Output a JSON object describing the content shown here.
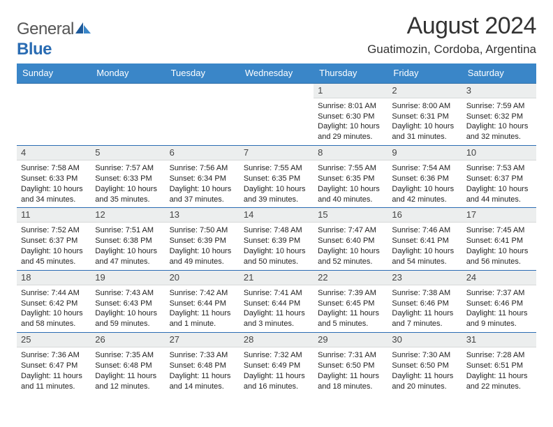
{
  "brand": {
    "general": "General",
    "blue": "Blue"
  },
  "heading": {
    "month": "August 2024",
    "location": "Guatimozin, Cordoba, Argentina"
  },
  "style": {
    "header_bg": "#3a86c8",
    "header_text": "#ffffff",
    "rule_color": "#2a6cb3",
    "daynum_bg": "#eceeee",
    "page_bg": "#ffffff",
    "text_color": "#222222"
  },
  "dayHeaders": [
    "Sunday",
    "Monday",
    "Tuesday",
    "Wednesday",
    "Thursday",
    "Friday",
    "Saturday"
  ],
  "weeks": [
    [
      {
        "n": "",
        "blank": true
      },
      {
        "n": "",
        "blank": true
      },
      {
        "n": "",
        "blank": true
      },
      {
        "n": "",
        "blank": true
      },
      {
        "n": "1",
        "sunrise": "8:01 AM",
        "sunset": "6:30 PM",
        "daylight": "10 hours and 29 minutes."
      },
      {
        "n": "2",
        "sunrise": "8:00 AM",
        "sunset": "6:31 PM",
        "daylight": "10 hours and 31 minutes."
      },
      {
        "n": "3",
        "sunrise": "7:59 AM",
        "sunset": "6:32 PM",
        "daylight": "10 hours and 32 minutes."
      }
    ],
    [
      {
        "n": "4",
        "sunrise": "7:58 AM",
        "sunset": "6:33 PM",
        "daylight": "10 hours and 34 minutes."
      },
      {
        "n": "5",
        "sunrise": "7:57 AM",
        "sunset": "6:33 PM",
        "daylight": "10 hours and 35 minutes."
      },
      {
        "n": "6",
        "sunrise": "7:56 AM",
        "sunset": "6:34 PM",
        "daylight": "10 hours and 37 minutes."
      },
      {
        "n": "7",
        "sunrise": "7:55 AM",
        "sunset": "6:35 PM",
        "daylight": "10 hours and 39 minutes."
      },
      {
        "n": "8",
        "sunrise": "7:55 AM",
        "sunset": "6:35 PM",
        "daylight": "10 hours and 40 minutes."
      },
      {
        "n": "9",
        "sunrise": "7:54 AM",
        "sunset": "6:36 PM",
        "daylight": "10 hours and 42 minutes."
      },
      {
        "n": "10",
        "sunrise": "7:53 AM",
        "sunset": "6:37 PM",
        "daylight": "10 hours and 44 minutes."
      }
    ],
    [
      {
        "n": "11",
        "sunrise": "7:52 AM",
        "sunset": "6:37 PM",
        "daylight": "10 hours and 45 minutes."
      },
      {
        "n": "12",
        "sunrise": "7:51 AM",
        "sunset": "6:38 PM",
        "daylight": "10 hours and 47 minutes."
      },
      {
        "n": "13",
        "sunrise": "7:50 AM",
        "sunset": "6:39 PM",
        "daylight": "10 hours and 49 minutes."
      },
      {
        "n": "14",
        "sunrise": "7:48 AM",
        "sunset": "6:39 PM",
        "daylight": "10 hours and 50 minutes."
      },
      {
        "n": "15",
        "sunrise": "7:47 AM",
        "sunset": "6:40 PM",
        "daylight": "10 hours and 52 minutes."
      },
      {
        "n": "16",
        "sunrise": "7:46 AM",
        "sunset": "6:41 PM",
        "daylight": "10 hours and 54 minutes."
      },
      {
        "n": "17",
        "sunrise": "7:45 AM",
        "sunset": "6:41 PM",
        "daylight": "10 hours and 56 minutes."
      }
    ],
    [
      {
        "n": "18",
        "sunrise": "7:44 AM",
        "sunset": "6:42 PM",
        "daylight": "10 hours and 58 minutes."
      },
      {
        "n": "19",
        "sunrise": "7:43 AM",
        "sunset": "6:43 PM",
        "daylight": "10 hours and 59 minutes."
      },
      {
        "n": "20",
        "sunrise": "7:42 AM",
        "sunset": "6:44 PM",
        "daylight": "11 hours and 1 minute."
      },
      {
        "n": "21",
        "sunrise": "7:41 AM",
        "sunset": "6:44 PM",
        "daylight": "11 hours and 3 minutes."
      },
      {
        "n": "22",
        "sunrise": "7:39 AM",
        "sunset": "6:45 PM",
        "daylight": "11 hours and 5 minutes."
      },
      {
        "n": "23",
        "sunrise": "7:38 AM",
        "sunset": "6:46 PM",
        "daylight": "11 hours and 7 minutes."
      },
      {
        "n": "24",
        "sunrise": "7:37 AM",
        "sunset": "6:46 PM",
        "daylight": "11 hours and 9 minutes."
      }
    ],
    [
      {
        "n": "25",
        "sunrise": "7:36 AM",
        "sunset": "6:47 PM",
        "daylight": "11 hours and 11 minutes."
      },
      {
        "n": "26",
        "sunrise": "7:35 AM",
        "sunset": "6:48 PM",
        "daylight": "11 hours and 12 minutes."
      },
      {
        "n": "27",
        "sunrise": "7:33 AM",
        "sunset": "6:48 PM",
        "daylight": "11 hours and 14 minutes."
      },
      {
        "n": "28",
        "sunrise": "7:32 AM",
        "sunset": "6:49 PM",
        "daylight": "11 hours and 16 minutes."
      },
      {
        "n": "29",
        "sunrise": "7:31 AM",
        "sunset": "6:50 PM",
        "daylight": "11 hours and 18 minutes."
      },
      {
        "n": "30",
        "sunrise": "7:30 AM",
        "sunset": "6:50 PM",
        "daylight": "11 hours and 20 minutes."
      },
      {
        "n": "31",
        "sunrise": "7:28 AM",
        "sunset": "6:51 PM",
        "daylight": "11 hours and 22 minutes."
      }
    ]
  ],
  "labels": {
    "sunrise": "Sunrise:",
    "sunset": "Sunset:",
    "daylight": "Daylight:"
  }
}
